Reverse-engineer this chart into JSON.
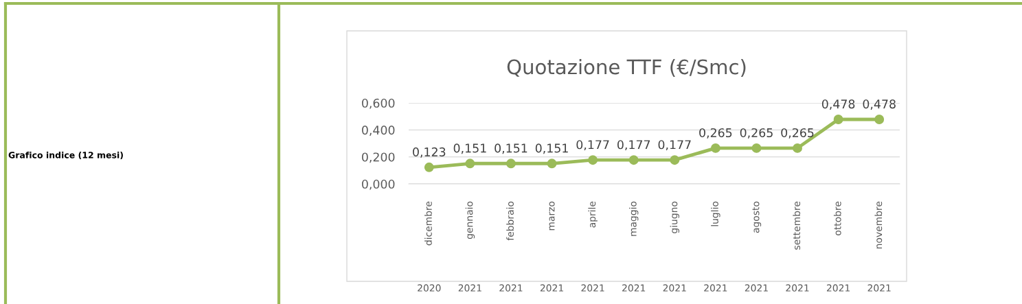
{
  "chart_data": {
    "type": "line",
    "title": "Quotazione TTF (€/Smc)",
    "categories": [
      "dicembre\n2020",
      "gennaio\n2021",
      "febbraio\n2021",
      "marzo\n2021",
      "aprile\n2021",
      "maggio\n2021",
      "giugno\n2021",
      "luglio\n2021",
      "agosto\n2021",
      "settembre\n2021",
      "ottobre\n2021",
      "novembre\n2021"
    ],
    "series": [
      {
        "color": "#9bbb59",
        "values": [
          0.123,
          0.151,
          0.151,
          0.151,
          0.177,
          0.177,
          0.177,
          0.265,
          0.265,
          0.265,
          0.478,
          0.478
        ],
        "value_labels": [
          "0,123",
          "0,151",
          "0,151",
          "0,151",
          "0,177",
          "0,177",
          "0,177",
          "0,265",
          "0,265",
          "0,265",
          "0,478",
          "0,478"
        ]
      }
    ],
    "ylim": [
      0,
      0.6
    ],
    "yticks": [
      {
        "value": 0,
        "label": "0,000"
      },
      {
        "value": 0.2,
        "label": "0,200"
      },
      {
        "value": 0.4,
        "label": "0,400"
      },
      {
        "value": 0.6,
        "label": "0,600"
      }
    ],
    "grid": "y",
    "legend": false,
    "marker": "circle",
    "line_style": "solid",
    "annotations": [
      "Grafico indice (12 mesi)"
    ]
  }
}
